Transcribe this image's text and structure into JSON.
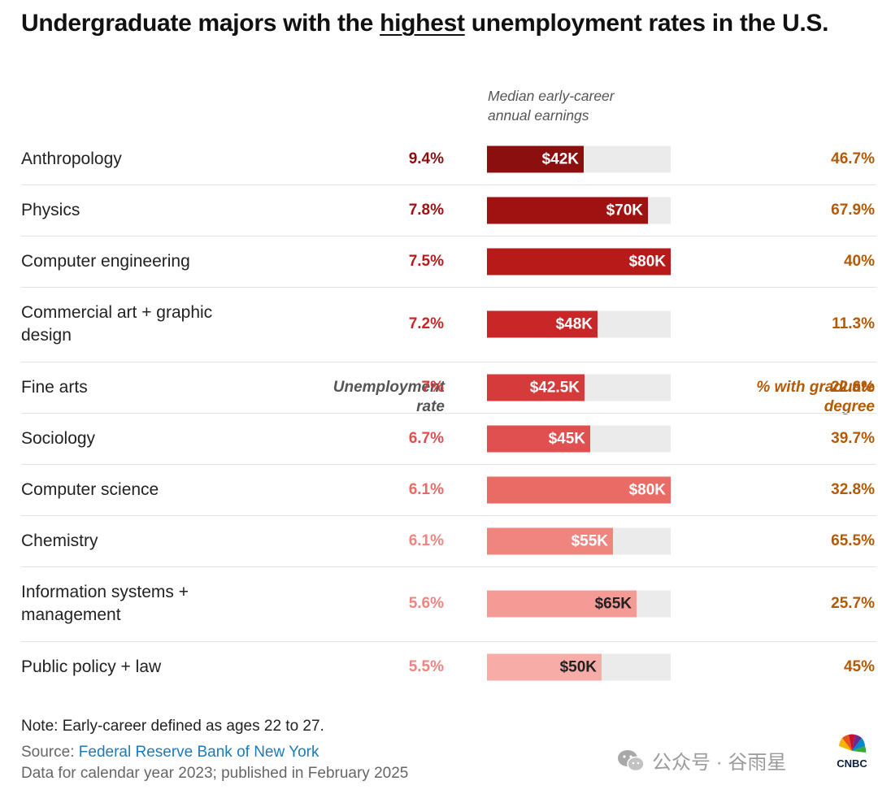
{
  "title": {
    "before": "Undergraduate majors with the ",
    "emphasis": "highest",
    "after": " unemployment rates in the U.S."
  },
  "columns": {
    "rate": [
      "Unemployment",
      "rate"
    ],
    "earnings": [
      "Median early-career",
      "annual earnings"
    ],
    "grad": [
      "% with graduate",
      "degree"
    ]
  },
  "chart_data": {
    "type": "table",
    "earnings_max": 80,
    "rows": [
      {
        "major": "Anthropology",
        "rate": "9.4%",
        "earnings": 42,
        "earnings_label": "$42K",
        "grad": "46.7%"
      },
      {
        "major": "Physics",
        "rate": "7.8%",
        "earnings": 70,
        "earnings_label": "$70K",
        "grad": "67.9%"
      },
      {
        "major": "Computer engineering",
        "rate": "7.5%",
        "earnings": 80,
        "earnings_label": "$80K",
        "grad": "40%"
      },
      {
        "major": "Commercial art + graphic design",
        "rate": "7.2%",
        "earnings": 48,
        "earnings_label": "$48K",
        "grad": "11.3%"
      },
      {
        "major": "Fine arts",
        "rate": "7%",
        "earnings": 42.5,
        "earnings_label": "$42.5K",
        "grad": "22.6%"
      },
      {
        "major": "Sociology",
        "rate": "6.7%",
        "earnings": 45,
        "earnings_label": "$45K",
        "grad": "39.7%"
      },
      {
        "major": "Computer science",
        "rate": "6.1%",
        "earnings": 80,
        "earnings_label": "$80K",
        "grad": "32.8%"
      },
      {
        "major": "Chemistry",
        "rate": "6.1%",
        "earnings": 55,
        "earnings_label": "$55K",
        "grad": "65.5%"
      },
      {
        "major": "Information systems + management",
        "rate": "5.6%",
        "earnings": 65,
        "earnings_label": "$65K",
        "grad": "25.7%"
      },
      {
        "major": "Public policy + law",
        "rate": "5.5%",
        "earnings": 50,
        "earnings_label": "$50K",
        "grad": "45%"
      }
    ]
  },
  "colors": {
    "row_bars": [
      "#8c0f0f",
      "#a01111",
      "#b81a1a",
      "#c92727",
      "#d63b3b",
      "#e05050",
      "#ea6b66",
      "#f08580",
      "#f59a95",
      "#f8aca8"
    ],
    "row_rates": [
      "#8c0f0f",
      "#a01111",
      "#b81a1a",
      "#c92727",
      "#d63b3b",
      "#e05050",
      "#ea6b66",
      "#f08580",
      "#f08580",
      "#f08580"
    ],
    "row_label_colors": [
      "#ffffff",
      "#ffffff",
      "#ffffff",
      "#ffffff",
      "#ffffff",
      "#ffffff",
      "#ffffff",
      "#ffffff",
      "#222222",
      "#222222"
    ],
    "grad": "#b35a06"
  },
  "footer": {
    "note": "Note: Early-career defined as ages 22 to 27.",
    "source_prefix": "Source: ",
    "source_link": "Federal Reserve Bank of New York",
    "data_note": "Data for calendar year 2023; published in February 2025"
  },
  "watermark": {
    "text": "公众号 · 谷雨星",
    "icon": "wechat-icon"
  },
  "logo": {
    "text": "CNBC",
    "icon": "peacock-icon"
  }
}
